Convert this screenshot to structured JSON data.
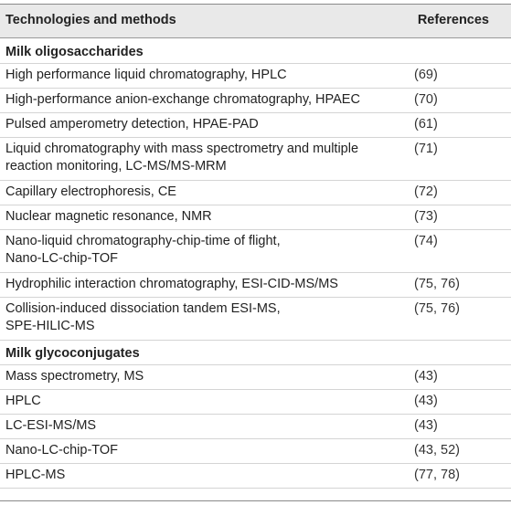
{
  "header": {
    "col1": "Technologies and methods",
    "col2": "References"
  },
  "sections": [
    {
      "title": "Milk oligosaccharides",
      "rows": [
        {
          "lines": [
            "High performance liquid chromatography, HPLC"
          ],
          "ref": "(69)"
        },
        {
          "lines": [
            "High-performance anion-exchange chromatography, HPAEC"
          ],
          "ref": "(70)"
        },
        {
          "lines": [
            "Pulsed amperometry detection, HPAE-PAD"
          ],
          "ref": "(61)"
        },
        {
          "lines": [
            "Liquid chromatography with mass spectrometry and multiple",
            "reaction monitoring, LC-MS/MS-MRM"
          ],
          "ref": "(71)"
        },
        {
          "lines": [
            "Capillary electrophoresis, CE"
          ],
          "ref": "(72)"
        },
        {
          "lines": [
            "Nuclear magnetic resonance, NMR"
          ],
          "ref": "(73)"
        },
        {
          "lines": [
            "Nano-liquid chromatography-chip-time of flight,",
            "Nano-LC-chip-TOF"
          ],
          "ref": "(74)"
        },
        {
          "lines": [
            "Hydrophilic interaction chromatography, ESI-CID-MS/MS"
          ],
          "ref": "(75, 76)"
        },
        {
          "lines": [
            "Collision-induced dissociation tandem ESI-MS,",
            "SPE-HILIC-MS"
          ],
          "ref": "(75, 76)"
        }
      ]
    },
    {
      "title": "Milk glycoconjugates",
      "rows": [
        {
          "lines": [
            "Mass spectrometry, MS"
          ],
          "ref": "(43)"
        },
        {
          "lines": [
            "HPLC"
          ],
          "ref": "(43)"
        },
        {
          "lines": [
            "LC-ESI-MS/MS"
          ],
          "ref": "(43)"
        },
        {
          "lines": [
            "Nano-LC-chip-TOF"
          ],
          "ref": "(43, 52)"
        },
        {
          "lines": [
            "HPLC-MS"
          ],
          "ref": "(77, 78)"
        }
      ]
    }
  ]
}
